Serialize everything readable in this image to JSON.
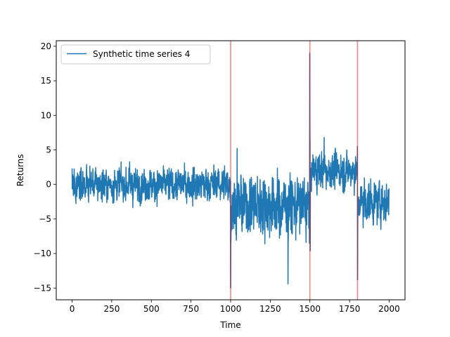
{
  "chart_data": {
    "type": "line",
    "title": "",
    "xlabel": "Time",
    "ylabel": "Returns",
    "xlim": [
      -100,
      2100
    ],
    "ylim": [
      -16.7,
      20.8
    ],
    "x_ticks": [
      0,
      250,
      500,
      750,
      1000,
      1250,
      1500,
      1750,
      2000
    ],
    "y_ticks": [
      -15,
      -10,
      -5,
      0,
      5,
      10,
      15,
      20
    ],
    "grid": false,
    "legend": {
      "position": "top-left"
    },
    "series": [
      {
        "name": "Synthetic time series 4",
        "color": "#1f77b4",
        "n_points": 2000,
        "regimes": [
          {
            "x_start": 0,
            "x_end": 1000,
            "mean": 0.0,
            "std": 1.5
          },
          {
            "x_start": 1000,
            "x_end": 1500,
            "mean": -3.0,
            "std": 2.7
          },
          {
            "x_start": 1500,
            "x_end": 1800,
            "mean": 2.0,
            "std": 1.6
          },
          {
            "x_start": 1800,
            "x_end": 2000,
            "mean": -2.5,
            "std": 1.9
          }
        ],
        "notable_points": [
          {
            "x": 1000,
            "y": -15.0
          },
          {
            "x": 1041,
            "y": 5.2
          },
          {
            "x": 1362,
            "y": -14.4
          },
          {
            "x": 1499,
            "y": 19.0
          },
          {
            "x": 1502,
            "y": -9.6
          },
          {
            "x": 1590,
            "y": 6.8
          },
          {
            "x": 1800,
            "y": 5.5
          },
          {
            "x": 1801,
            "y": -13.8
          }
        ]
      }
    ],
    "vlines": [
      {
        "x": 1000,
        "color": "#ff0000",
        "alpha": 0.5
      },
      {
        "x": 1500,
        "color": "#ff0000",
        "alpha": 0.5
      },
      {
        "x": 1800,
        "color": "#ff0000",
        "alpha": 0.5
      }
    ]
  }
}
